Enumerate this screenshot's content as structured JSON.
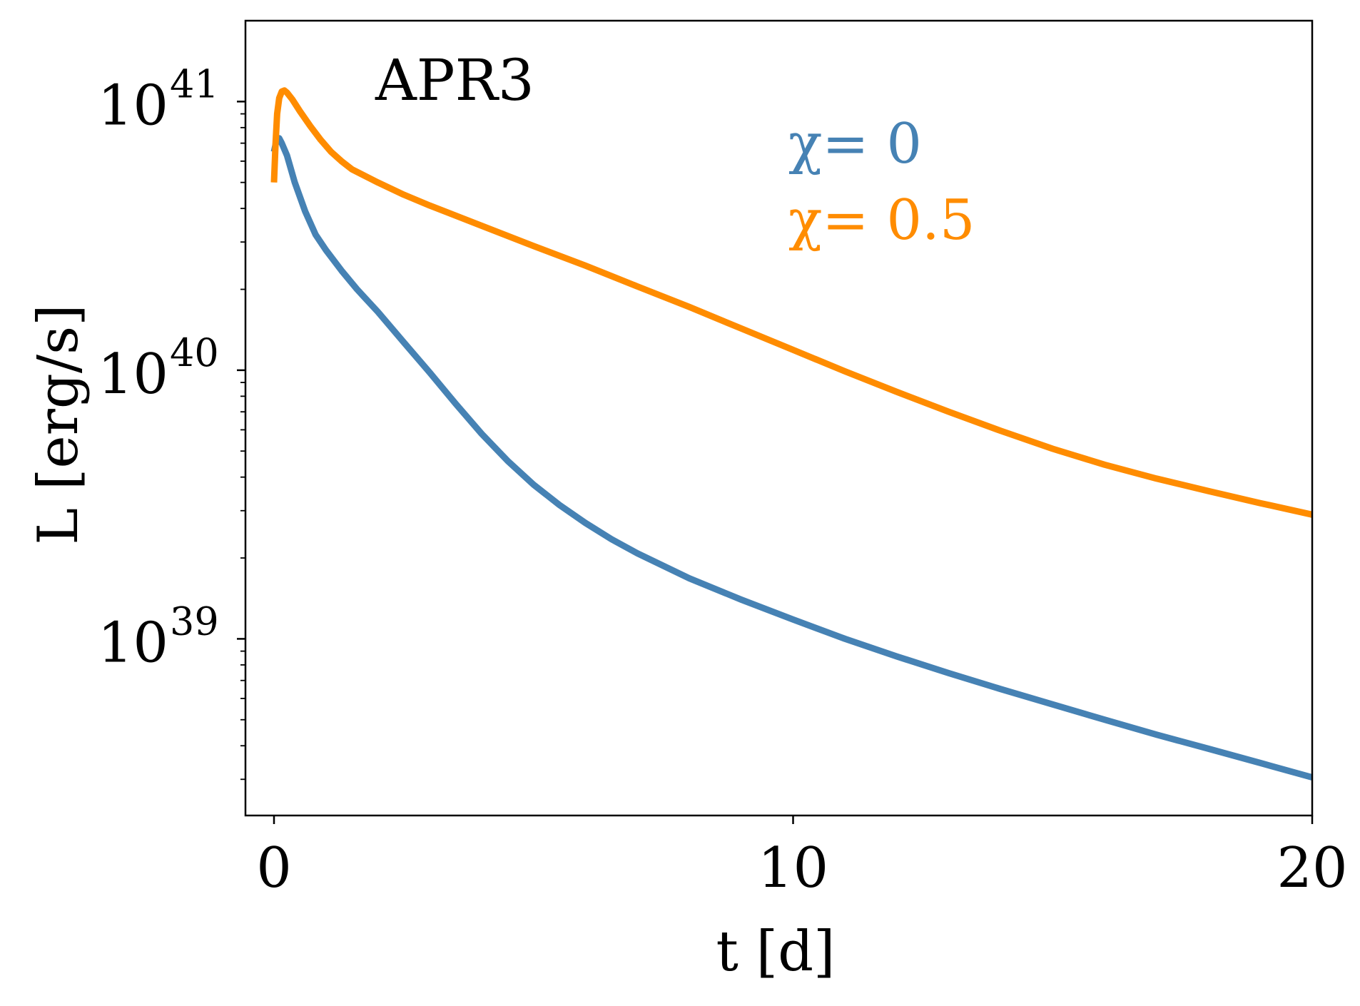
{
  "chart_data": {
    "type": "line",
    "title": "APR3",
    "xlabel": "t [d]",
    "ylabel": "L [erg/s]",
    "xlim": [
      -0.55,
      20
    ],
    "ylim": [
      2.2e+38,
      2e+41
    ],
    "yscale": "log",
    "grid": false,
    "legend_placement": "top-right",
    "x_ticks": [
      {
        "value": 0,
        "label": "0"
      },
      {
        "value": 10,
        "label": "10"
      },
      {
        "value": 20,
        "label": "20"
      }
    ],
    "y_ticks": [
      {
        "value": 1e+39,
        "base": "10",
        "exp": "39"
      },
      {
        "value": 1e+40,
        "base": "10",
        "exp": "40"
      },
      {
        "value": 1e+41,
        "base": "10",
        "exp": "41"
      }
    ],
    "series": [
      {
        "name": "χ= 0",
        "color": "#4682b4",
        "x": [
          0.0,
          0.05,
          0.1,
          0.15,
          0.25,
          0.4,
          0.6,
          0.8,
          1.0,
          1.3,
          1.6,
          2.0,
          2.5,
          3.0,
          3.5,
          4.0,
          4.5,
          5.0,
          5.5,
          6.0,
          6.5,
          7.0,
          8.0,
          9.0,
          10.0,
          11.0,
          12.0,
          13.0,
          14.0,
          15.0,
          16.0,
          17.0,
          18.0,
          19.0,
          20.0
        ],
        "y": [
          6.5e+40,
          7.2e+40,
          7.3e+40,
          7e+40,
          6.3e+40,
          5e+40,
          3.9e+40,
          3.2e+40,
          2.8e+40,
          2.35e+40,
          2e+40,
          1.65e+40,
          1.27e+40,
          9.8e+39,
          7.5e+39,
          5.8e+39,
          4.6e+39,
          3.75e+39,
          3.15e+39,
          2.7e+39,
          2.35e+39,
          2.08e+39,
          1.68e+39,
          1.4e+39,
          1.18e+39,
          1e+39,
          8.6e+38,
          7.45e+38,
          6.5e+38,
          5.7e+38,
          5e+38,
          4.4e+38,
          3.9e+38,
          3.45e+38,
          3.05e+38
        ]
      },
      {
        "name": "χ= 0.5",
        "color": "#ff8c00",
        "x": [
          0.0,
          0.03,
          0.06,
          0.1,
          0.15,
          0.2,
          0.25,
          0.35,
          0.5,
          0.7,
          0.9,
          1.1,
          1.3,
          1.5,
          2.0,
          2.5,
          3.0,
          4.0,
          5.0,
          6.0,
          7.0,
          8.0,
          9.0,
          10.0,
          11.0,
          12.0,
          13.0,
          14.0,
          15.0,
          16.0,
          17.0,
          18.0,
          19.0,
          20.0
        ],
        "y": [
          5e+40,
          7e+40,
          9e+40,
          1.03e+41,
          1.09e+41,
          1.1e+41,
          1.08e+41,
          1.02e+41,
          9.2e+40,
          8.1e+40,
          7.2e+40,
          6.5e+40,
          6e+40,
          5.6e+40,
          5e+40,
          4.5e+40,
          4.1e+40,
          3.45e+40,
          2.9e+40,
          2.45e+40,
          2.05e+40,
          1.72e+40,
          1.43e+40,
          1.19e+40,
          9.9e+39,
          8.3e+39,
          7e+39,
          5.95e+39,
          5.1e+39,
          4.45e+39,
          3.95e+39,
          3.55e+39,
          3.2e+39,
          2.9e+39
        ]
      }
    ]
  }
}
